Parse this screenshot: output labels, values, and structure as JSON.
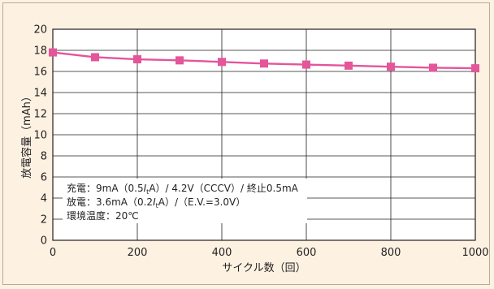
{
  "chart_data": {
    "type": "line",
    "xlabel": "サイクル数（回）",
    "ylabel": "放電容量（mAh）",
    "xlim": [
      0,
      1000
    ],
    "ylim": [
      0,
      20
    ],
    "x_ticks": [
      0,
      200,
      400,
      600,
      800,
      1000
    ],
    "y_ticks": [
      0,
      2,
      4,
      6,
      8,
      10,
      12,
      14,
      16,
      18,
      20
    ],
    "grid": true,
    "series": [
      {
        "color": "#e4559a",
        "marker": "square",
        "x": [
          0,
          100,
          200,
          300,
          400,
          500,
          600,
          700,
          800,
          900,
          1000
        ],
        "y": [
          17.8,
          17.35,
          17.15,
          17.05,
          16.9,
          16.75,
          16.65,
          16.55,
          16.45,
          16.35,
          16.3
        ]
      }
    ],
    "annotations": [
      {
        "prefix": "充電：9mA（0.5",
        "italic": "I",
        "sub": "t",
        "suffix": "A）/ 4.2V（CCCV）/ 終止0.5mA"
      },
      {
        "prefix": "放電：3.6mA（0.2",
        "italic": "I",
        "sub": "t",
        "suffix": "A）/（E.V.=3.0V）"
      },
      {
        "prefix": "環境温度：20℃",
        "italic": "",
        "sub": "",
        "suffix": ""
      }
    ]
  }
}
